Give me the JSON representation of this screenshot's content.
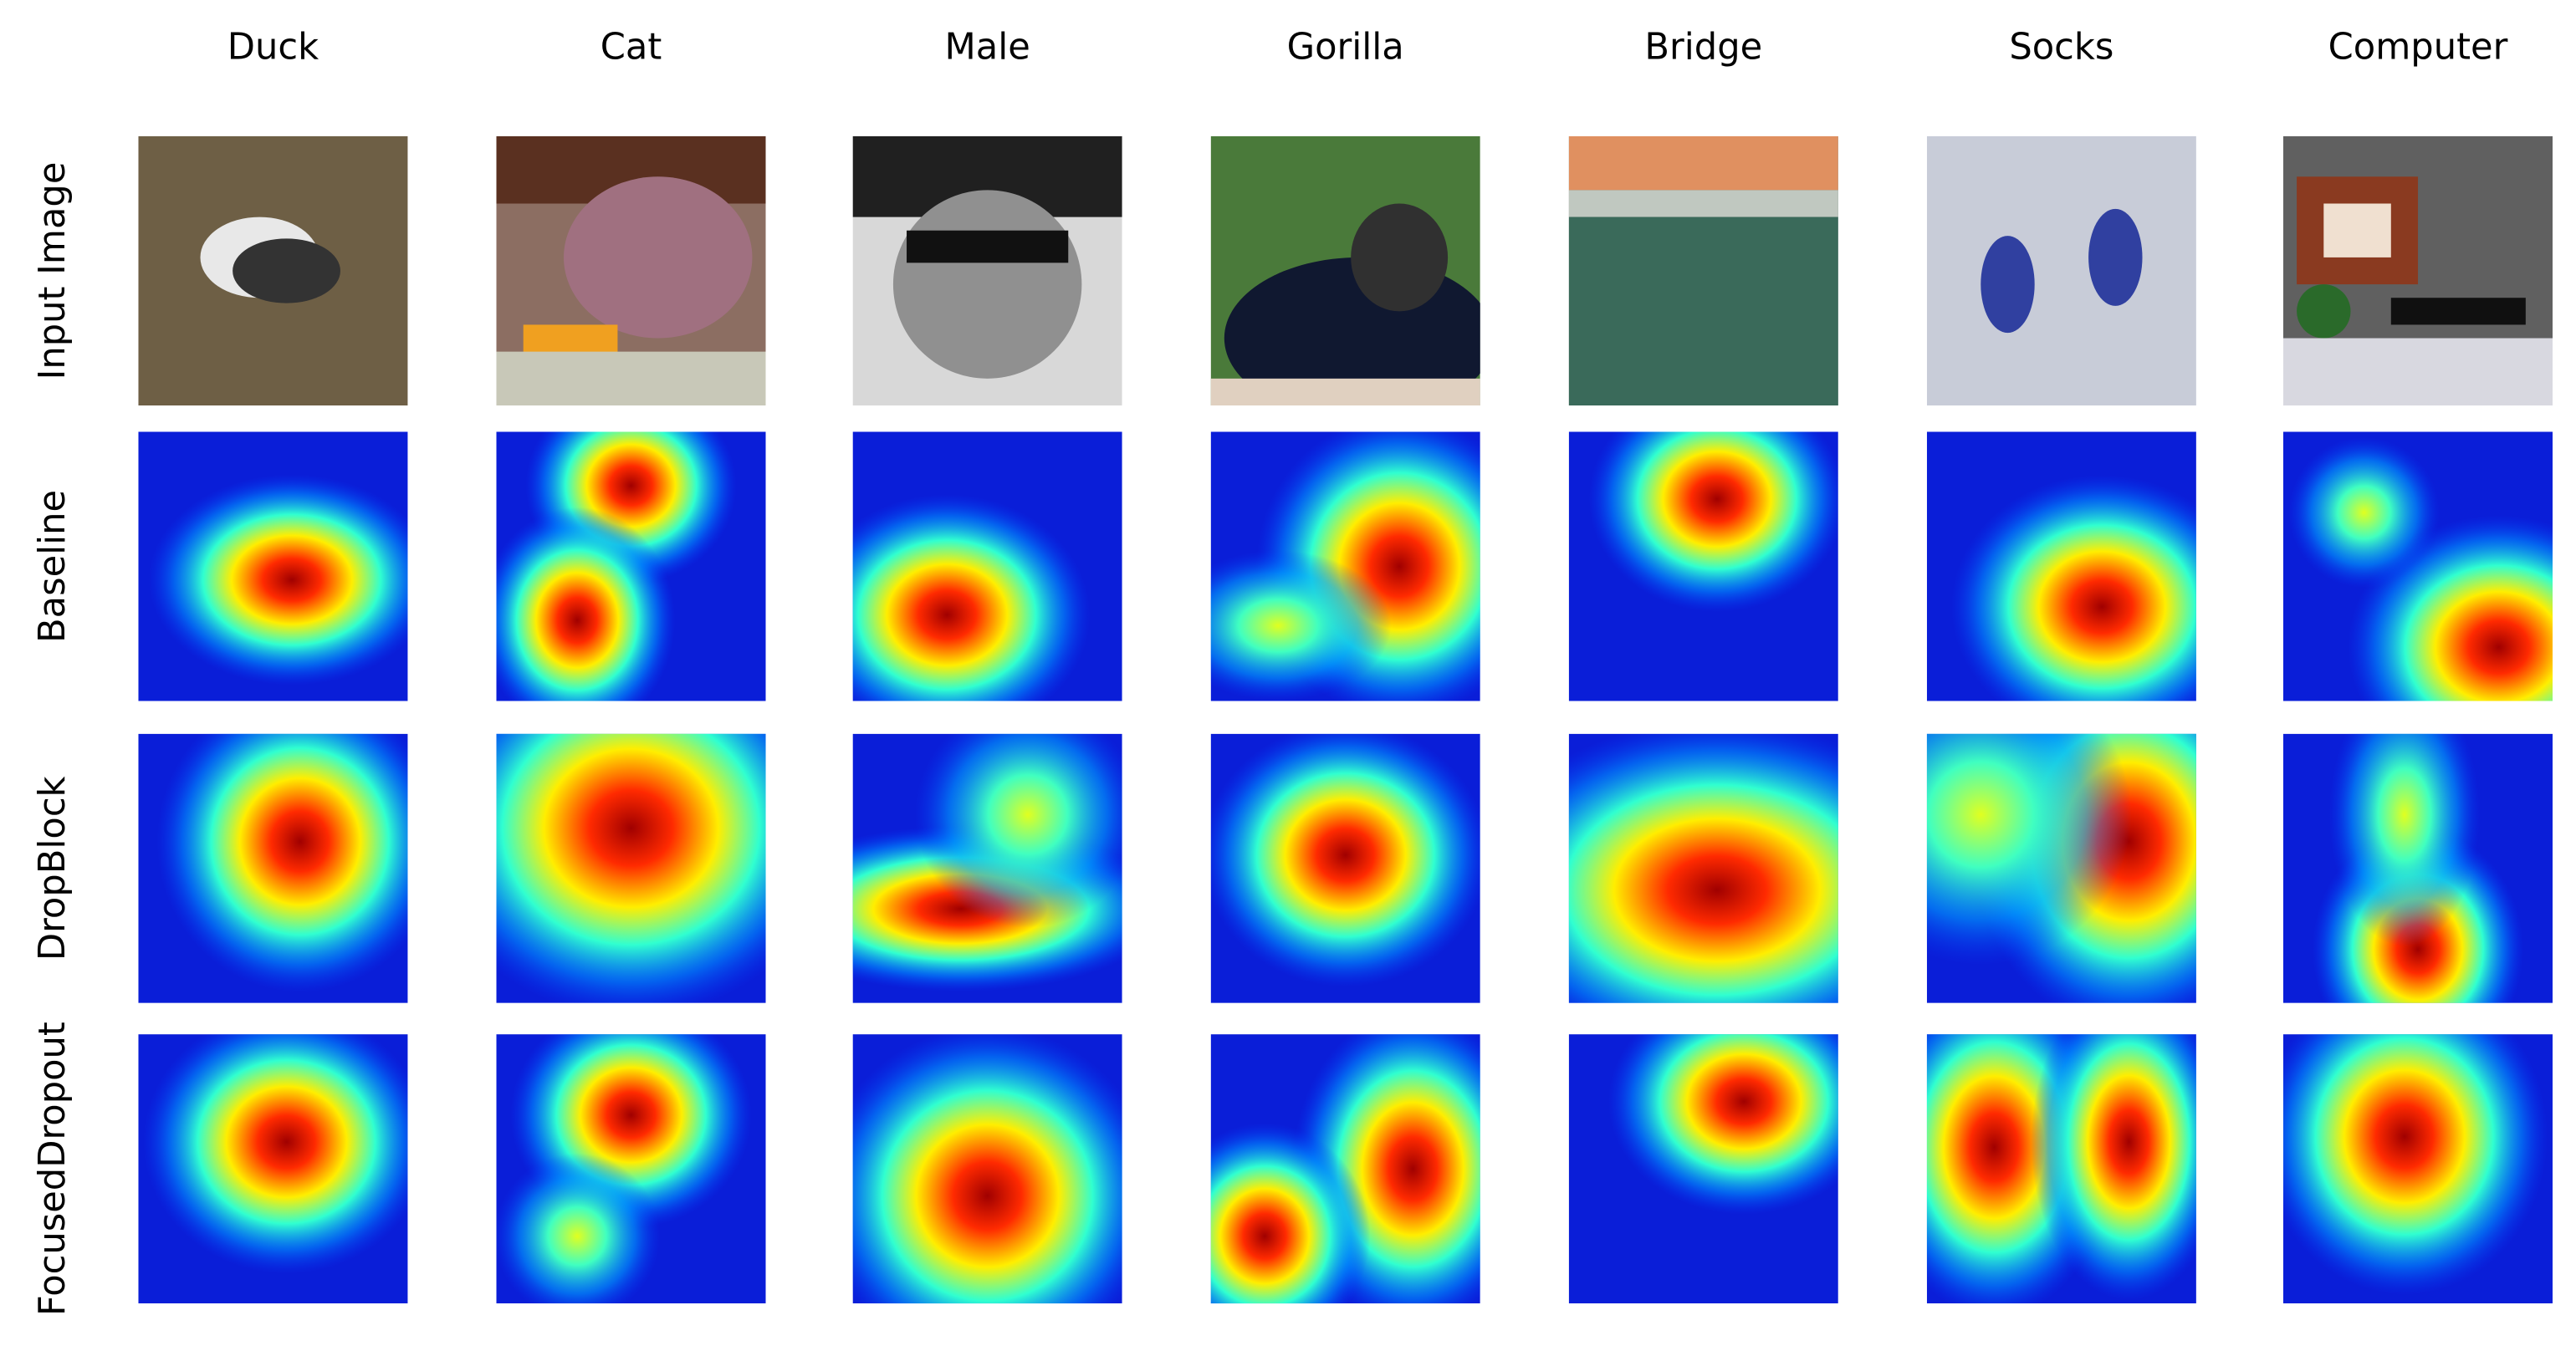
{
  "columns": [
    "Duck",
    "Cat",
    "Male",
    "Gorilla",
    "Bridge",
    "Socks",
    "Computer"
  ],
  "rows": [
    "Input Image",
    "Baseline",
    "DropBlock",
    "FocusedDropout"
  ]
}
